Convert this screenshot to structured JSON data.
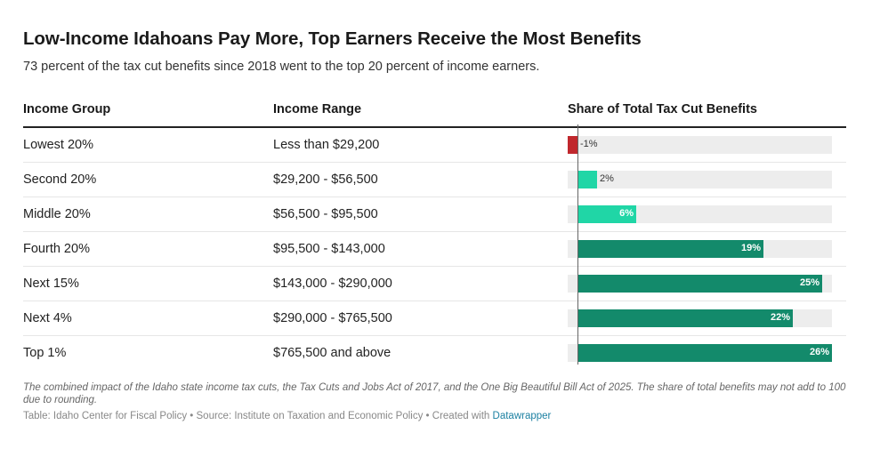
{
  "title": "Low-Income Idahoans Pay More, Top Earners Receive the Most Benefits",
  "subtitle": "73 percent of the tax cut benefits since 2018 went to the top 20 percent of income earners.",
  "columns": {
    "group": "Income Group",
    "range": "Income Range",
    "share": "Share of Total Tax Cut Benefits"
  },
  "colors": {
    "negative": "#c0282d",
    "low": "#20d6a6",
    "high": "#138a6b",
    "track": "#ededed"
  },
  "chart_data": {
    "type": "table",
    "title": "Low-Income Idahoans Pay More, Top Earners Receive the Most Benefits",
    "xlim": [
      -1,
      26
    ],
    "rows": [
      {
        "group": "Lowest 20%",
        "range": "Less than $29,200",
        "value": -1,
        "label": "-1%"
      },
      {
        "group": "Second 20%",
        "range": "$29,200 - $56,500",
        "value": 2,
        "label": "2%"
      },
      {
        "group": "Middle 20%",
        "range": "$56,500 - $95,500",
        "value": 6,
        "label": "6%"
      },
      {
        "group": "Fourth 20%",
        "range": "$95,500 - $143,000",
        "value": 19,
        "label": "19%"
      },
      {
        "group": "Next 15%",
        "range": "$143,000 - $290,000",
        "value": 25,
        "label": "25%"
      },
      {
        "group": "Next 4%",
        "range": "$290,000 - $765,500",
        "value": 22,
        "label": "22%"
      },
      {
        "group": "Top 1%",
        "range": "$765,500 and above",
        "value": 26,
        "label": "26%"
      }
    ]
  },
  "notes": "The combined impact of the Idaho state income tax cuts, the Tax Cuts and Jobs Act of 2017, and the One Big Beautiful Bill Act of 2025. The share of total benefits may not add to 100 due to rounding.",
  "footer": {
    "text": "Table: Idaho Center for Fiscal Policy • Source: Institute on Taxation and Economic Policy • Created with ",
    "link": "Datawrapper"
  }
}
